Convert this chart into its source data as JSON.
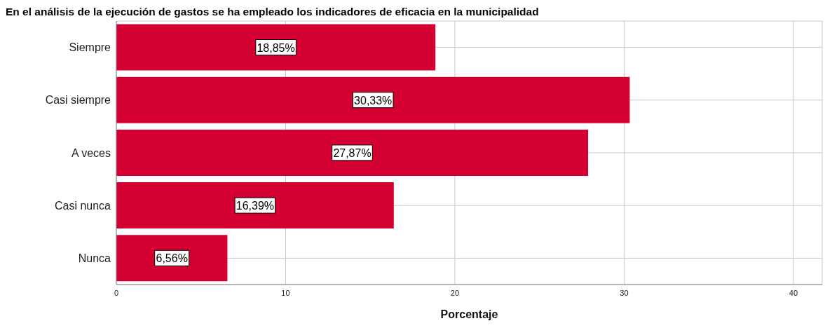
{
  "chart_data": {
    "type": "bar",
    "orientation": "horizontal",
    "title": "En el análisis de la ejecución de gastos se ha empleado los indicadores de eficacia en la municipalidad",
    "xlabel": "Porcentaje",
    "categories": [
      "Siempre",
      "Casi siempre",
      "A veces",
      "Casi nunca",
      "Nunca"
    ],
    "values": [
      18.85,
      30.33,
      27.87,
      16.39,
      6.56
    ],
    "value_labels": [
      "18,85%",
      "30,33%",
      "27,87%",
      "16,39%",
      "6,56%"
    ],
    "color": "#d50032",
    "xlim": [
      0,
      41.7
    ],
    "xticks": [
      0,
      10,
      20,
      30,
      40
    ],
    "grid": true
  }
}
